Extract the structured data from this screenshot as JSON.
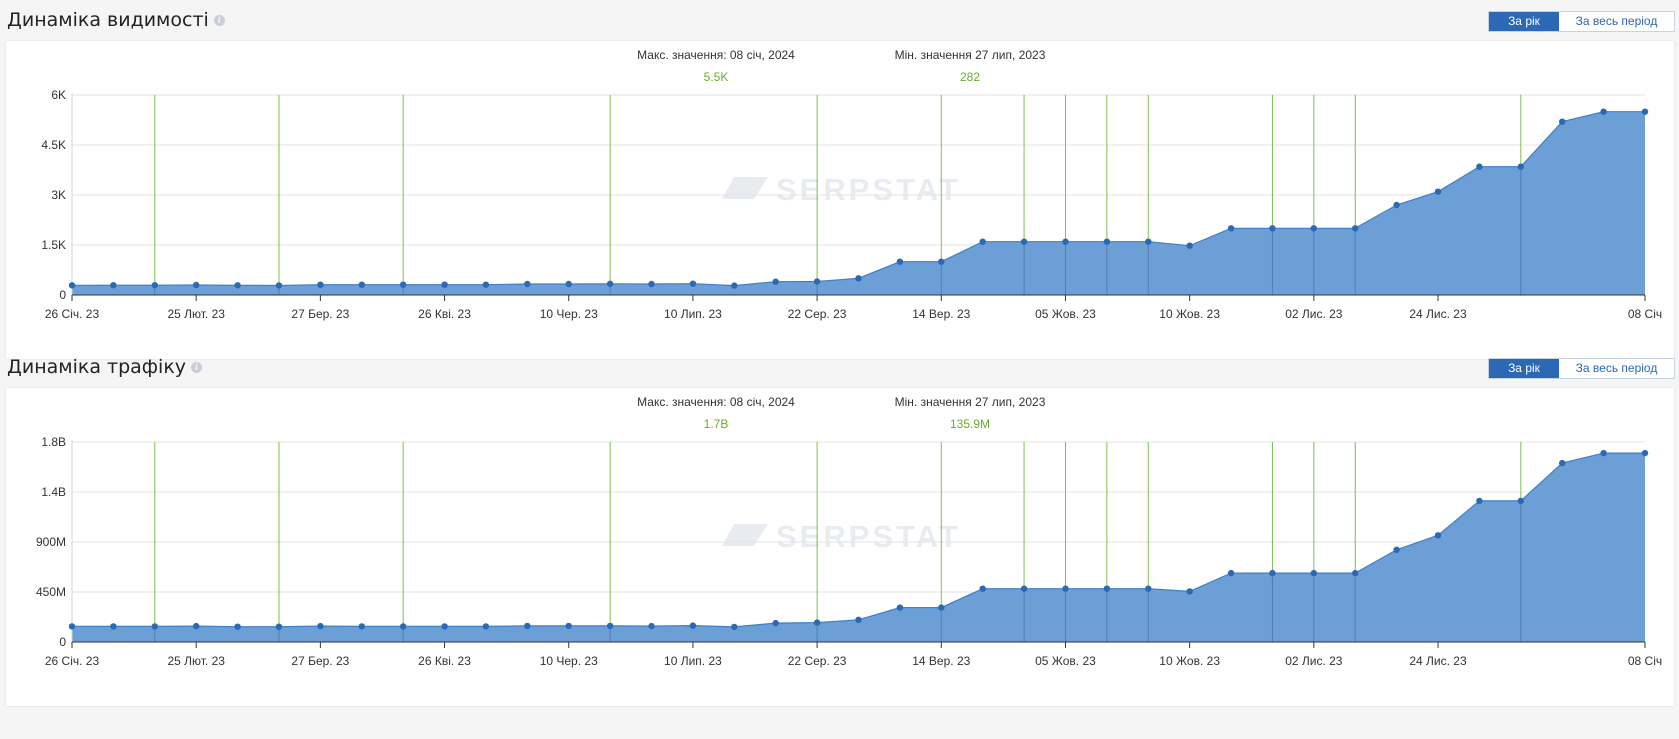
{
  "panels": [
    {
      "title": "Динаміка видимості",
      "btn_year": "За рік",
      "btn_all": "За весь період",
      "max_label": "Макс. значення: 08 січ, 2024",
      "max_value": "5.5K",
      "min_label": "Мін. значення 27 лип, 2023",
      "min_value": "282"
    },
    {
      "title": "Динаміка трафіку",
      "btn_year": "За рік",
      "btn_all": "За весь період",
      "max_label": "Макс. значення: 08 січ, 2024",
      "max_value": "1.7B",
      "min_label": "Мін. значення 27 лип, 2023",
      "min_value": "135.9M"
    }
  ],
  "watermark": "SERPSTAT",
  "colors": {
    "area": "#6b9fd6",
    "line": "#3f7fc8",
    "point": "#2a6ab4",
    "event_line": "#7cc04a",
    "grid": "#e3e3e3"
  },
  "chart_data": [
    {
      "type": "area",
      "title": "Динаміка видимості",
      "x_tick_labels": [
        "26 Січ. 23",
        "25 Лют. 23",
        "27 Бер. 23",
        "26 Кві. 23",
        "10 Чер. 23",
        "10 Лип. 23",
        "22 Сер. 23",
        "14 Вер. 23",
        "05 Жов. 23",
        "10 Жов. 23",
        "02 Лис. 23",
        "24 Лис. 23",
        "08 Січ"
      ],
      "x_tick_index": [
        0,
        3,
        6,
        9,
        12,
        15,
        18,
        21,
        24,
        27,
        30,
        33,
        38
      ],
      "y_tick_labels": [
        "0",
        "1.5K",
        "3K",
        "4.5K",
        "6K"
      ],
      "y_ticks": [
        0,
        1500,
        3000,
        4500,
        6000
      ],
      "ylim": [
        0,
        6000
      ],
      "event_line_index": [
        2,
        5,
        8,
        13,
        18,
        21,
        23,
        24,
        25,
        26,
        29,
        30,
        31,
        35
      ],
      "values": [
        290,
        295,
        295,
        300,
        290,
        285,
        310,
        310,
        310,
        310,
        310,
        330,
        330,
        335,
        330,
        340,
        282,
        400,
        405,
        500,
        1000,
        1000,
        1600,
        1600,
        1600,
        1600,
        1600,
        1480,
        2000,
        2000,
        2000,
        2000,
        2700,
        3100,
        3850,
        3850,
        5200,
        5500,
        5500
      ]
    },
    {
      "type": "area",
      "title": "Динаміка трафіку",
      "x_tick_labels": [
        "26 Січ. 23",
        "25 Лют. 23",
        "27 Бер. 23",
        "26 Кві. 23",
        "10 Чер. 23",
        "10 Лип. 23",
        "22 Сер. 23",
        "14 Вер. 23",
        "05 Жов. 23",
        "10 Жов. 23",
        "02 Лис. 23",
        "24 Лис. 23",
        "08 Січ"
      ],
      "x_tick_index": [
        0,
        3,
        6,
        9,
        12,
        15,
        18,
        21,
        24,
        27,
        30,
        33,
        38
      ],
      "y_tick_labels": [
        "0",
        "450M",
        "900M",
        "1.4B",
        "1.8B"
      ],
      "y_ticks": [
        0,
        450,
        900,
        1350,
        1800
      ],
      "ylim": [
        0,
        1800
      ],
      "y_unit": "M",
      "event_line_index": [
        2,
        5,
        8,
        13,
        18,
        21,
        23,
        24,
        25,
        26,
        29,
        30,
        31,
        35
      ],
      "values": [
        140,
        140,
        140,
        143,
        138,
        138,
        143,
        140,
        140,
        140,
        140,
        145,
        145,
        145,
        143,
        148,
        135.9,
        170,
        175,
        200,
        310,
        310,
        480,
        480,
        480,
        480,
        480,
        455,
        620,
        620,
        620,
        620,
        830,
        960,
        1270,
        1270,
        1610,
        1700,
        1700
      ]
    }
  ]
}
